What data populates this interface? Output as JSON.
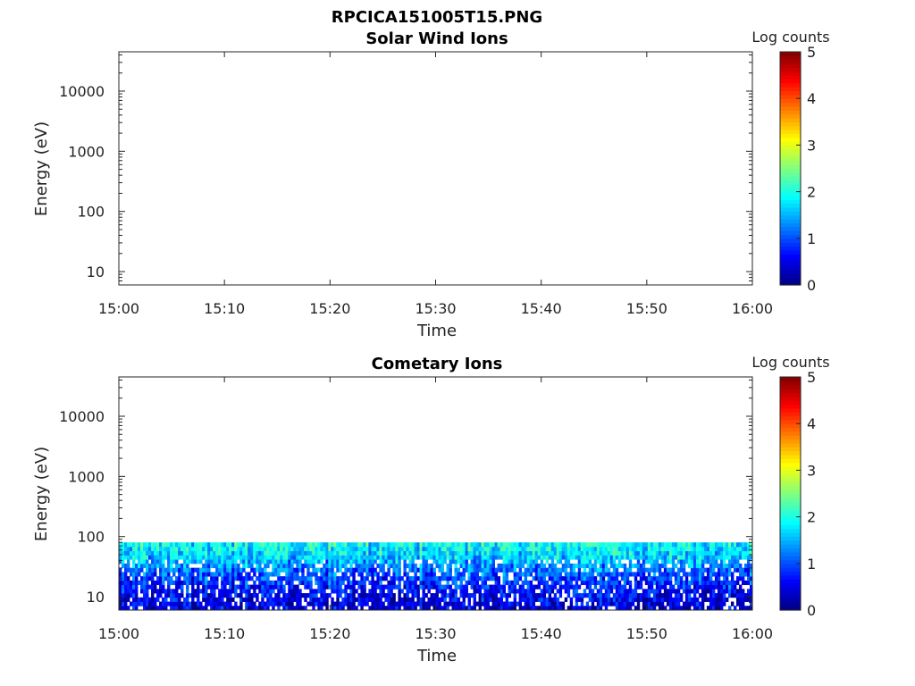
{
  "figure": {
    "title": "RPCICA151005T15.PNG"
  },
  "colormap": [
    "#00007f",
    "#0000ff",
    "#007fff",
    "#00ffff",
    "#7fff7f",
    "#ffff00",
    "#ff7f00",
    "#ff0000",
    "#7f0000"
  ],
  "chart_data": [
    {
      "type": "heatmap",
      "title": "Solar Wind Ions",
      "xlabel": "Time",
      "ylabel": "Energy (eV)",
      "x_ticks": [
        "15:00",
        "15:10",
        "15:20",
        "15:30",
        "15:40",
        "15:50",
        "16:00"
      ],
      "y_ticks": [
        "10",
        "100",
        "1000",
        "10000"
      ],
      "y_scale": "log",
      "ylim": [
        6,
        45000
      ],
      "colorbar": {
        "label": "Log counts",
        "ticks": [
          "0",
          "1",
          "2",
          "3",
          "4",
          "5"
        ],
        "range": [
          0,
          5
        ]
      },
      "data": []
    },
    {
      "type": "heatmap",
      "title": "Cometary Ions",
      "xlabel": "Time",
      "ylabel": "Energy (eV)",
      "x_ticks": [
        "15:00",
        "15:10",
        "15:20",
        "15:30",
        "15:40",
        "15:50",
        "16:00"
      ],
      "y_ticks": [
        "10",
        "100",
        "1000",
        "10000"
      ],
      "y_scale": "log",
      "ylim": [
        6,
        45000
      ],
      "colorbar": {
        "label": "Log counts",
        "ticks": [
          "0",
          "1",
          "2",
          "3",
          "4",
          "5"
        ],
        "range": [
          0,
          5
        ]
      },
      "data_extent": {
        "time": [
          "15:00",
          "16:00"
        ],
        "energy_eV": [
          6,
          80
        ]
      },
      "data_profile_log_counts": [
        {
          "energy_eV": 80,
          "value": 1.9
        },
        {
          "energy_eV": 50,
          "value": 1.7
        },
        {
          "energy_eV": 30,
          "value": 1.2
        },
        {
          "energy_eV": 20,
          "value": 0.9
        },
        {
          "energy_eV": 12,
          "value": 0.6
        },
        {
          "energy_eV": 7,
          "value": 0.4
        }
      ]
    }
  ]
}
